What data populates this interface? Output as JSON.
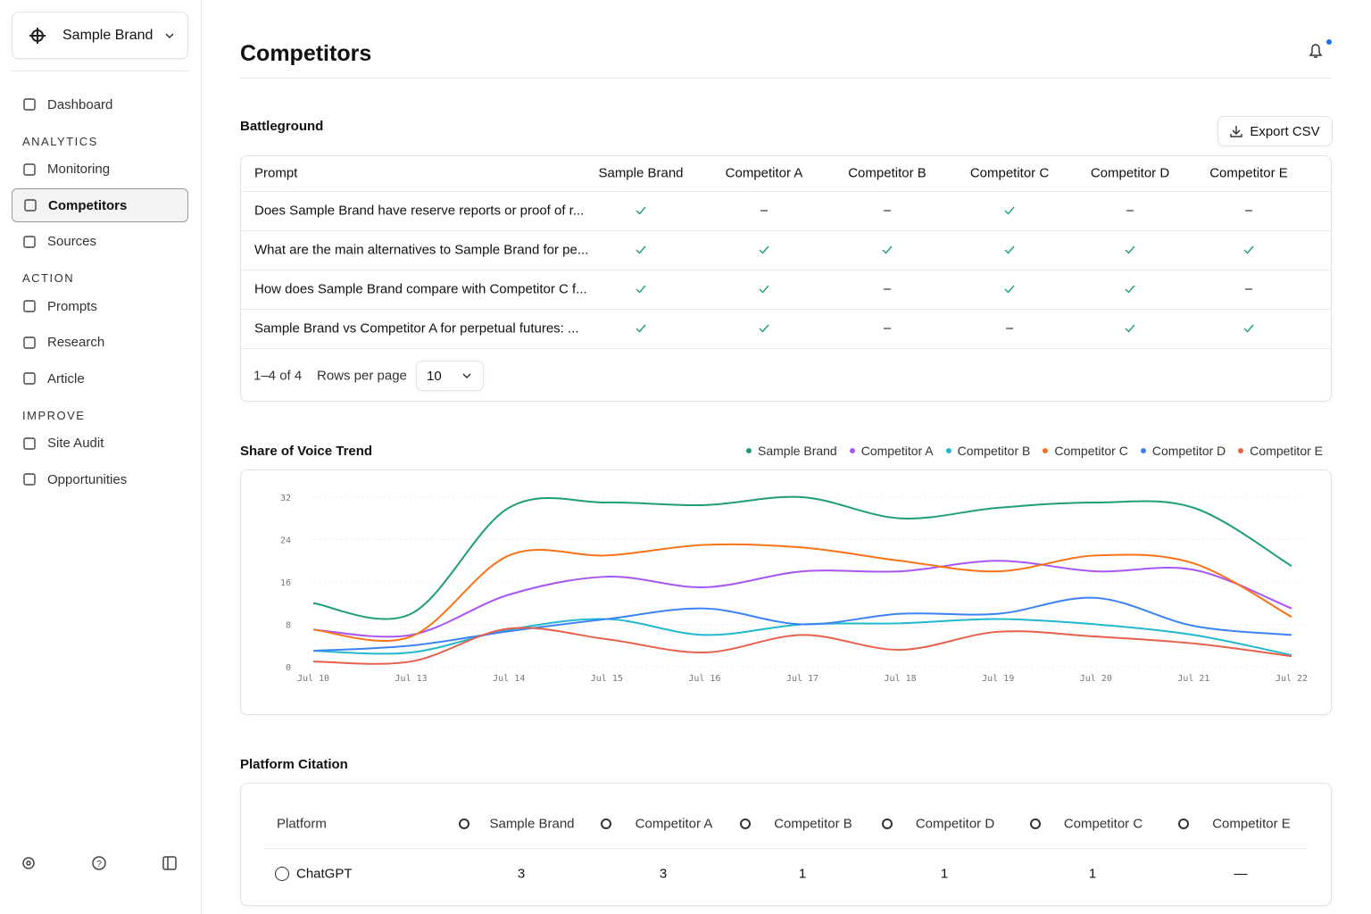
{
  "sidebar": {
    "brand": "Sample Brand",
    "active": "Competitors",
    "sections": [
      {
        "items": [
          "Dashboard"
        ]
      },
      {
        "heading": "ANALYTICS",
        "items": [
          "Monitoring",
          "Competitors",
          "Sources"
        ]
      },
      {
        "heading": "ACTION",
        "items": [
          "Prompts",
          "Research",
          "Article"
        ]
      },
      {
        "heading": "IMPROVE",
        "items": [
          "Site Audit",
          "Opportunities"
        ]
      }
    ]
  },
  "header": {
    "title": "Competitors"
  },
  "battleground": {
    "title": "Battleground",
    "export": "Export CSV",
    "columns": [
      "Prompt",
      "Sample Brand",
      "Competitor A",
      "Competitor B",
      "Competitor C",
      "Competitor D",
      "Competitor E"
    ],
    "rows": [
      {
        "prompt": "Does Sample Brand have reserve reports or proof of r...",
        "marks": [
          true,
          false,
          false,
          true,
          false,
          false
        ]
      },
      {
        "prompt": "What are the main alternatives to Sample Brand for pe...",
        "marks": [
          true,
          true,
          true,
          true,
          true,
          true
        ]
      },
      {
        "prompt": "How does Sample Brand compare with Competitor C f...",
        "marks": [
          true,
          true,
          false,
          true,
          true,
          false
        ]
      },
      {
        "prompt": "Sample Brand vs Competitor A for perpetual futures: ...",
        "marks": [
          true,
          true,
          false,
          false,
          true,
          true
        ]
      }
    ],
    "range": "1–4 of 4",
    "rows_per_page_label": "Rows per page",
    "rows_per_page": 10
  },
  "chart_data": {
    "type": "line",
    "title": "Share of Voice Trend",
    "categories": [
      "Jul 10",
      "Jul 13",
      "Jul 14",
      "Jul 15",
      "Jul 16",
      "Jul 17",
      "Jul 18",
      "Jul 19",
      "Jul 20",
      "Jul 21",
      "Jul 22"
    ],
    "series": [
      {
        "name": "Sample Brand",
        "color": "#1f9e74",
        "values": [
          12,
          10,
          30,
          31,
          30.5,
          32,
          28,
          30,
          31,
          30,
          19
        ]
      },
      {
        "name": "Competitor A",
        "color": "#a855f7",
        "values": [
          7,
          6,
          13.6,
          17,
          15,
          18,
          18,
          20,
          18,
          18.3,
          11
        ]
      },
      {
        "name": "Competitor B",
        "color": "#22b8cf",
        "values": [
          3,
          2.7,
          7,
          9,
          6,
          8,
          8.2,
          9,
          8,
          6,
          2.2
        ]
      },
      {
        "name": "Competitor C",
        "color": "#f97316",
        "values": [
          7,
          5.7,
          21,
          21,
          23,
          22.5,
          20,
          18,
          21,
          19.5,
          9.4
        ]
      },
      {
        "name": "Competitor D",
        "color": "#3b82f6",
        "values": [
          3,
          4,
          6.7,
          9,
          11,
          8,
          10,
          10,
          13,
          7.7,
          6
        ]
      },
      {
        "name": "Competitor E",
        "color": "#e8604c",
        "values": [
          1,
          1,
          7.2,
          5.2,
          2.7,
          6,
          3.2,
          6.6,
          5.7,
          4.4,
          2
        ]
      }
    ],
    "ylim": [
      0,
      32
    ],
    "yticks": [
      0,
      8,
      16,
      24,
      32
    ],
    "grid": true
  },
  "platform": {
    "title": "Platform Citation",
    "columns": [
      "Platform",
      "Sample Brand",
      "Competitor A",
      "Competitor B",
      "Competitor D",
      "Competitor C",
      "Competitor E"
    ],
    "rows": [
      {
        "platform": "ChatGPT",
        "values": [
          3,
          3,
          1,
          1,
          1,
          "—"
        ]
      }
    ]
  }
}
